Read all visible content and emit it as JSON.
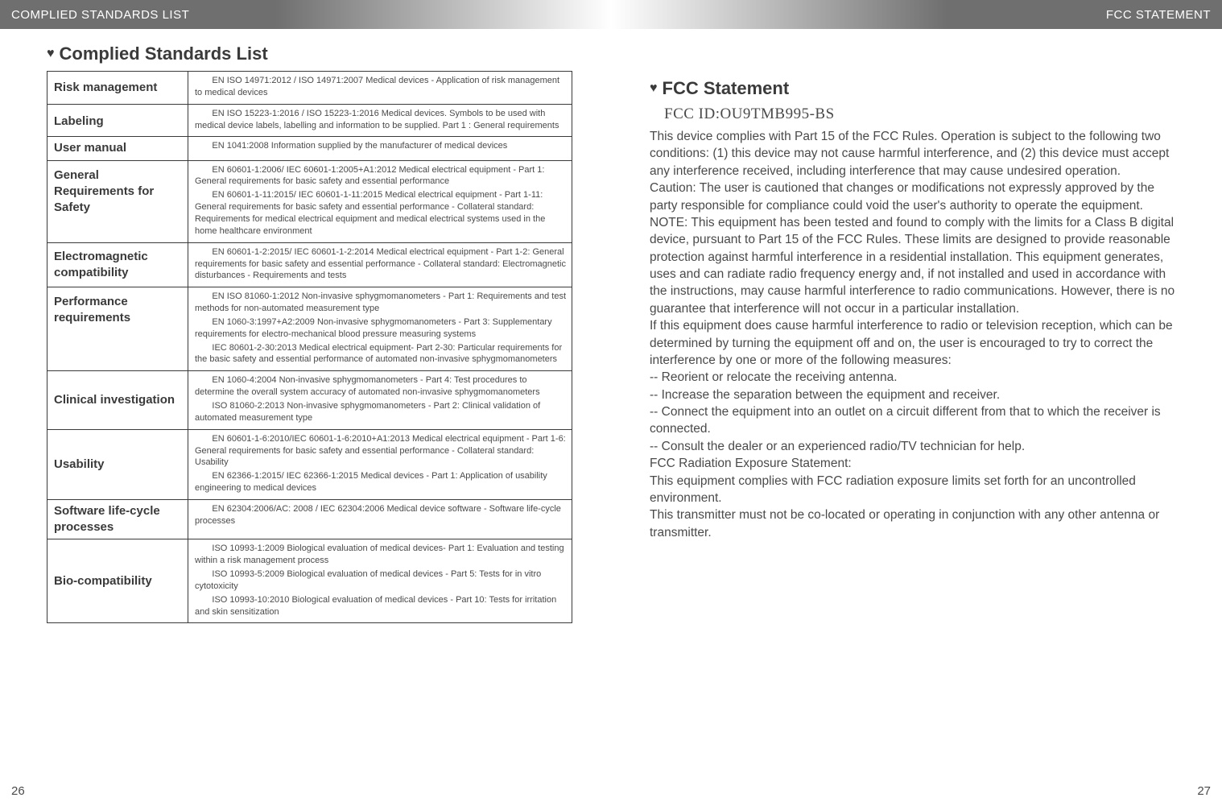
{
  "left": {
    "header": "COMPLIED STANDARDS LIST",
    "title": "Complied Standards List",
    "page_num": "26",
    "rows": [
      {
        "label": "Risk management",
        "body": "        EN ISO 14971:2012 / ISO 14971:2007 Medical devices - Application of risk management to medical devices"
      },
      {
        "label": "Labeling",
        "valign": "bottom",
        "body": "        EN ISO 15223-1:2016 / ISO 15223-1:2016  Medical devices. Symbols to be used with medical device labels, labelling and information to be supplied. Part 1 : General requirements"
      },
      {
        "label": "User manual",
        "body": "        EN 1041:2008 Information supplied by the manufacturer of medical devices"
      },
      {
        "label": "General Requirements for Safety",
        "valign": "top",
        "body": "        EN 60601-1:2006/ IEC 60601-1:2005+A1:2012 Medical electrical equipment - Part 1: General requirements for basic safety and essential performance\n        EN 60601-1-11:2015/ IEC 60601-1-11:2015 Medical electrical equipment - Part 1-11: General requirements for basic safety and essential performance - Collateral standard: Requirements for medical electrical equipment and medical electrical systems used in the home healthcare environment"
      },
      {
        "label": "Electromagnetic compatibility",
        "body": "        EN 60601-1-2:2015/ IEC 60601-1-2:2014 Medical electrical equipment - Part 1-2: General requirements for basic safety and essential performance - Collateral standard: Electromagnetic disturbances - Requirements and tests"
      },
      {
        "label": "Performance requirements",
        "valign": "top",
        "body": "        EN ISO 81060-1:2012 Non-invasive sphygmomanometers - Part 1: Requirements and test methods for non-automated measurement type\n        EN 1060-3:1997+A2:2009 Non-invasive sphygmomanometers - Part 3: Supplementary requirements for electro-mechanical blood pressure measuring systems\n        IEC 80601-2-30:2013 Medical electrical equipment- Part 2-30: Particular requirements for the basic safety and essential performance of automated non-invasive sphygmomanometers"
      },
      {
        "label": "Clinical investigation",
        "body": "        EN 1060-4:2004 Non-invasive sphygmomanometers - Part 4: Test procedures to determine the overall system accuracy of automated non-invasive sphygmomanometers\n        ISO 81060-2:2013  Non-invasive sphygmomanometers - Part 2: Clinical validation of automated measurement type"
      },
      {
        "label": "Usability",
        "body": "        EN 60601-1-6:2010/IEC 60601-1-6:2010+A1:2013 Medical electrical equipment - Part 1-6: General requirements for basic safety and essential performance - Collateral standard: Usability\n        EN 62366-1:2015/ IEC 62366-1:2015 Medical devices - Part 1: Application of usability engineering to medical devices"
      },
      {
        "label": "Software life-cycle processes",
        "body": "        EN 62304:2006/AC: 2008 / IEC 62304:2006   Medical device software - Software life-cycle processes"
      },
      {
        "label": "Bio-compatibility",
        "body": "        ISO 10993-1:2009 Biological evaluation of medical devices- Part 1: Evaluation and testing within a risk management process\n        ISO 10993-5:2009 Biological evaluation of medical devices - Part 5: Tests for in vitro cytotoxicity\n        ISO 10993-10:2010 Biological evaluation of medical devices - Part 10: Tests for irritation and skin sensitization"
      }
    ]
  },
  "right": {
    "header": "FCC STATEMENT",
    "title": "FCC Statement",
    "subtitle": "FCC ID:OU9TMB995-BS",
    "page_num": "27",
    "body": "This device complies with Part 15 of the FCC Rules. Operation is subject to the following two conditions: (1) this device may not cause harmful interference, and (2) this device must accept any interference received, including interference that may cause undesired operation.\nCaution: The user is cautioned that changes or modifications not expressly approved by the party responsible for compliance could void the user's authority to operate the equipment.\nNOTE: This equipment has been tested and found to comply with the limits for a Class B digital device, pursuant to Part 15 of the FCC Rules. These limits are designed to provide reasonable protection against harmful interference in a residential installation. This equipment generates, uses and can radiate radio frequency energy and, if not installed and used in accordance with the instructions, may cause harmful interference to radio communications. However, there is no guarantee that interference will not occur in a particular installation.\nIf this equipment does cause harmful interference to radio or television reception, which can be determined by turning the equipment off and on, the user is encouraged to try to correct the interference by one or more of the following measures:\n-- Reorient or relocate the receiving antenna.\n-- Increase the separation between the equipment and receiver.\n-- Connect the equipment into an outlet on a circuit different from that to which the receiver is connected.\n-- Consult the dealer or an experienced radio/TV technician for help.\nFCC Radiation Exposure Statement:\nThis equipment complies with FCC radiation exposure limits set forth for an uncontrolled environment.\nThis transmitter must not be co-located or operating in conjunction with any other antenna or transmitter."
  }
}
